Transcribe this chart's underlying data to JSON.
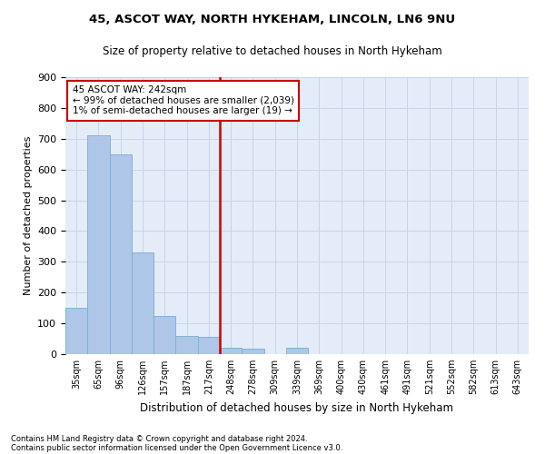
{
  "title1": "45, ASCOT WAY, NORTH HYKEHAM, LINCOLN, LN6 9NU",
  "title2": "Size of property relative to detached houses in North Hykeham",
  "xlabel": "Distribution of detached houses by size in North Hykeham",
  "ylabel": "Number of detached properties",
  "categories": [
    "35sqm",
    "65sqm",
    "96sqm",
    "126sqm",
    "157sqm",
    "187sqm",
    "217sqm",
    "248sqm",
    "278sqm",
    "309sqm",
    "339sqm",
    "369sqm",
    "400sqm",
    "430sqm",
    "461sqm",
    "491sqm",
    "521sqm",
    "552sqm",
    "582sqm",
    "613sqm",
    "643sqm"
  ],
  "values": [
    150,
    710,
    650,
    330,
    125,
    60,
    55,
    20,
    18,
    0,
    20,
    0,
    0,
    0,
    0,
    0,
    0,
    0,
    0,
    0,
    0
  ],
  "bar_color": "#aec6e8",
  "bar_edge_color": "#7aaed4",
  "vline_color": "#cc0000",
  "vline_xidx": 7,
  "annotation_line1": "45 ASCOT WAY: 242sqm",
  "annotation_line2": "← 99% of detached houses are smaller (2,039)",
  "annotation_line3": "1% of semi-detached houses are larger (19) →",
  "annotation_box_color": "#ffffff",
  "annotation_box_edge": "#cc0000",
  "grid_color": "#c8d4e8",
  "bg_color": "#e4ecf7",
  "footnote1": "Contains HM Land Registry data © Crown copyright and database right 2024.",
  "footnote2": "Contains public sector information licensed under the Open Government Licence v3.0.",
  "ylim": [
    0,
    900
  ],
  "yticks": [
    0,
    100,
    200,
    300,
    400,
    500,
    600,
    700,
    800,
    900
  ]
}
